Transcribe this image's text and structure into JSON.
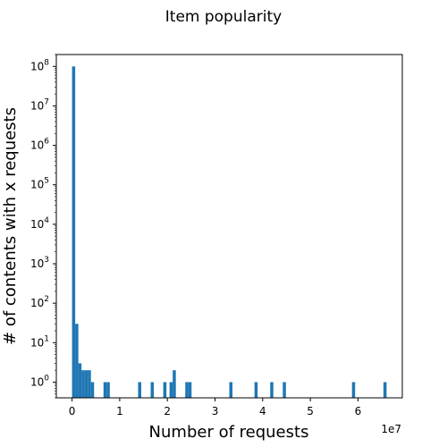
{
  "chart_data": {
    "type": "bar",
    "title": "Item popularity",
    "xlabel": "Number of requests",
    "ylabel": "# of contents with x requests",
    "x_offset_label": "1e7",
    "yscale": "log",
    "grid": false,
    "xlim": [
      -3300000,
      69300000
    ],
    "ylim": [
      0.4,
      200000000
    ],
    "x_ticks": [
      {
        "value": 0,
        "label": "0"
      },
      {
        "value": 10000000,
        "label": "1"
      },
      {
        "value": 20000000,
        "label": "2"
      },
      {
        "value": 30000000,
        "label": "3"
      },
      {
        "value": 40000000,
        "label": "4"
      },
      {
        "value": 50000000,
        "label": "5"
      },
      {
        "value": 60000000,
        "label": "6"
      }
    ],
    "y_ticks": [
      {
        "value": 1,
        "base": "10",
        "exp": "0"
      },
      {
        "value": 10,
        "base": "10",
        "exp": "1"
      },
      {
        "value": 100,
        "base": "10",
        "exp": "2"
      },
      {
        "value": 1000,
        "base": "10",
        "exp": "3"
      },
      {
        "value": 10000,
        "base": "10",
        "exp": "4"
      },
      {
        "value": 100000,
        "base": "10",
        "exp": "5"
      },
      {
        "value": 1000000,
        "base": "10",
        "exp": "6"
      },
      {
        "value": 10000000,
        "base": "10",
        "exp": "7"
      },
      {
        "value": 100000000,
        "base": "10",
        "exp": "8"
      }
    ],
    "bin_width": 660000,
    "bins": [
      {
        "x": 0,
        "count": 100000000
      },
      {
        "x": 660000,
        "count": 30
      },
      {
        "x": 1320000,
        "count": 3
      },
      {
        "x": 1980000,
        "count": 2
      },
      {
        "x": 2640000,
        "count": 2
      },
      {
        "x": 3300000,
        "count": 2
      },
      {
        "x": 3960000,
        "count": 1
      },
      {
        "x": 6600000,
        "count": 1
      },
      {
        "x": 7260000,
        "count": 1
      },
      {
        "x": 13860000,
        "count": 1
      },
      {
        "x": 16500000,
        "count": 1
      },
      {
        "x": 19140000,
        "count": 1
      },
      {
        "x": 20460000,
        "count": 1
      },
      {
        "x": 21120000,
        "count": 2
      },
      {
        "x": 23760000,
        "count": 1
      },
      {
        "x": 24420000,
        "count": 1
      },
      {
        "x": 33000000,
        "count": 1
      },
      {
        "x": 38280000,
        "count": 1
      },
      {
        "x": 41580000,
        "count": 1
      },
      {
        "x": 44220000,
        "count": 1
      },
      {
        "x": 58740000,
        "count": 1
      },
      {
        "x": 65340000,
        "count": 1
      }
    ],
    "bar_color": "#1f77b4"
  }
}
